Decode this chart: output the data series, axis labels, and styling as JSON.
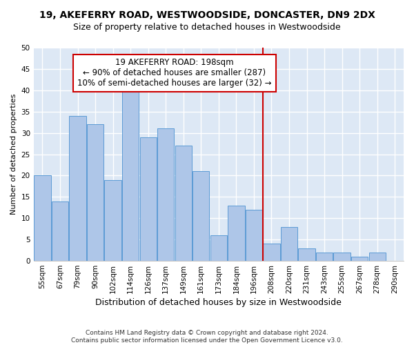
{
  "title1": "19, AKEFERRY ROAD, WESTWOODSIDE, DONCASTER, DN9 2DX",
  "title2": "Size of property relative to detached houses in Westwoodside",
  "xlabel": "Distribution of detached houses by size in Westwoodside",
  "ylabel": "Number of detached properties",
  "footer1": "Contains HM Land Registry data © Crown copyright and database right 2024.",
  "footer2": "Contains public sector information licensed under the Open Government Licence v3.0.",
  "categories": [
    "55sqm",
    "67sqm",
    "79sqm",
    "90sqm",
    "102sqm",
    "114sqm",
    "126sqm",
    "137sqm",
    "149sqm",
    "161sqm",
    "173sqm",
    "184sqm",
    "196sqm",
    "208sqm",
    "220sqm",
    "231sqm",
    "243sqm",
    "255sqm",
    "267sqm",
    "278sqm",
    "290sqm"
  ],
  "values": [
    20,
    14,
    34,
    32,
    19,
    40,
    29,
    31,
    27,
    21,
    6,
    13,
    12,
    4,
    8,
    3,
    2,
    2,
    1,
    2,
    0
  ],
  "bar_color": "#aec6e8",
  "bar_edge_color": "#5b9bd5",
  "vline_index": 12.5,
  "vline_color": "#cc0000",
  "annotation_text": "19 AKEFERRY ROAD: 198sqm\n← 90% of detached houses are smaller (287)\n10% of semi-detached houses are larger (32) →",
  "annotation_box_color": "#cc0000",
  "ylim": [
    0,
    50
  ],
  "yticks": [
    0,
    5,
    10,
    15,
    20,
    25,
    30,
    35,
    40,
    45,
    50
  ],
  "bg_color": "#dde8f5",
  "grid_color": "#ffffff",
  "fig_bg_color": "#ffffff",
  "title1_fontsize": 10,
  "title2_fontsize": 9,
  "xlabel_fontsize": 9,
  "ylabel_fontsize": 8,
  "tick_fontsize": 7.5,
  "annotation_fontsize": 8.5,
  "footer_fontsize": 6.5
}
